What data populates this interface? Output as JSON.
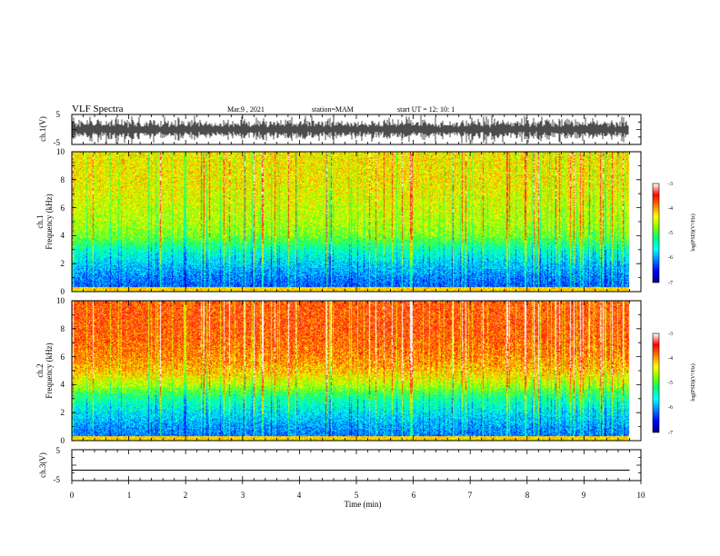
{
  "header": {
    "title": "VLF Spectra",
    "date": "Mar.9  , 2021",
    "station": "station=MAM",
    "start": "start  UT  =   12: 10: 1"
  },
  "chart_data": [
    {
      "type": "line",
      "panel": "ch1-waveform",
      "ylabel": "ch.1(V)",
      "yticks": [
        "5",
        "-5"
      ],
      "ylim": [
        -5,
        5
      ],
      "xlim": [
        0,
        10
      ]
    },
    {
      "type": "heatmap",
      "panel": "ch1-spectrogram",
      "ylabel_1": "ch.1",
      "ylabel_2": "Frequency  (kHz)",
      "yticks": [
        "0",
        "2",
        "4",
        "6",
        "8",
        "10"
      ],
      "ylim": [
        0,
        10
      ],
      "xlim": [
        0,
        10
      ],
      "colorbar": {
        "label": "log(PSD)(V²/Hz)",
        "ticks": [
          "-3",
          "-4",
          "-5",
          "-6",
          "-7"
        ],
        "range": [
          -7,
          -3
        ]
      },
      "bands_kHz_log_psd": [
        [
          0,
          -6.3
        ],
        [
          1,
          -6.1
        ],
        [
          2,
          -5.8
        ],
        [
          3,
          -5.4
        ],
        [
          4,
          -4.8
        ],
        [
          5,
          -4.6
        ],
        [
          6,
          -4.5
        ],
        [
          7,
          -4.4
        ],
        [
          8,
          -4.3
        ],
        [
          9,
          -4.3
        ],
        [
          10,
          -4.3
        ]
      ]
    },
    {
      "type": "heatmap",
      "panel": "ch2-spectrogram",
      "ylabel_1": "ch.2",
      "ylabel_2": "Frequency  (kHz)",
      "yticks": [
        "0",
        "2",
        "4",
        "6",
        "8",
        "10"
      ],
      "ylim": [
        0,
        10
      ],
      "xlim": [
        0,
        10
      ],
      "colorbar": {
        "label": "log(PSD)(V²/Hz)",
        "ticks": [
          "-3",
          "-4",
          "-5",
          "-6",
          "-7"
        ],
        "range": [
          -7,
          -3
        ]
      },
      "bands_kHz_log_psd": [
        [
          0,
          -6.2
        ],
        [
          1,
          -6.0
        ],
        [
          2,
          -5.7
        ],
        [
          3,
          -5.3
        ],
        [
          4,
          -4.6
        ],
        [
          5,
          -4.1
        ],
        [
          6,
          -3.9
        ],
        [
          7,
          -3.8
        ],
        [
          8,
          -3.7
        ],
        [
          9,
          -3.7
        ],
        [
          10,
          -3.7
        ]
      ]
    },
    {
      "type": "line",
      "panel": "ch3-waveform",
      "ylabel": "ch.3(V)",
      "yticks": [
        "5",
        "-5"
      ],
      "ylim": [
        -5,
        5
      ],
      "xlim": [
        0,
        10
      ],
      "x": [
        0,
        9.8
      ],
      "y": [
        -1.6,
        -1.6
      ]
    }
  ],
  "xaxis": {
    "label": "Time  (min)",
    "ticks": [
      "0",
      "1",
      "2",
      "3",
      "4",
      "5",
      "6",
      "7",
      "8",
      "9",
      "10"
    ]
  },
  "colors": {
    "colormap": [
      "#000080",
      "#0000ff",
      "#0080ff",
      "#00ffff",
      "#00ff80",
      "#80ff00",
      "#ffff00",
      "#ff8000",
      "#ff0000",
      "#ffffff"
    ]
  }
}
